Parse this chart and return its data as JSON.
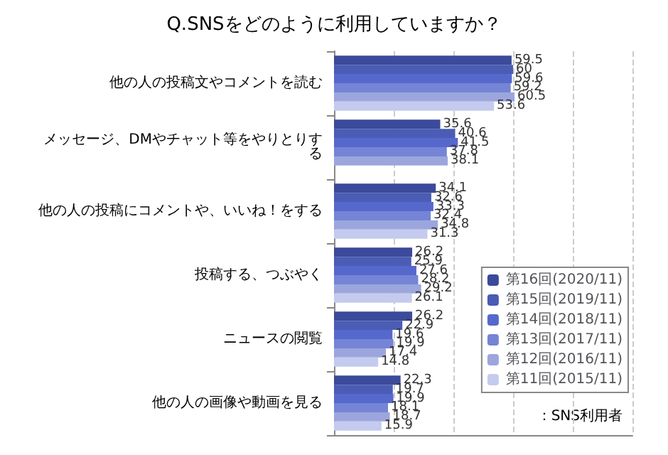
{
  "chart_data": {
    "type": "bar",
    "orientation": "horizontal",
    "title": "Q.SNSをどのように利用していますか？",
    "categories": [
      "他の人の投稿文やコメントを読む",
      "メッセージ、DMやチャット等をやりとりする",
      "他の人の投稿にコメントや、いいね！をする",
      "投稿する、つぶやく",
      "ニュースの閲覧",
      "他の人の画像や動画を見る"
    ],
    "series": [
      {
        "name": "第16回(2020/11)",
        "color": "#3b4a9a",
        "values": [
          59.5,
          35.6,
          34.1,
          26.2,
          26.2,
          22.3
        ]
      },
      {
        "name": "第15回(2019/11)",
        "color": "#4a5cb4",
        "values": [
          60.0,
          40.6,
          32.6,
          25.9,
          22.9,
          19.7
        ]
      },
      {
        "name": "第14回(2018/11)",
        "color": "#5668cc",
        "values": [
          59.6,
          41.5,
          33.3,
          27.6,
          19.6,
          19.9
        ]
      },
      {
        "name": "第13回(2017/11)",
        "color": "#7584d4",
        "values": [
          59.2,
          37.8,
          32.4,
          28.2,
          19.9,
          18.1
        ]
      },
      {
        "name": "第12回(2016/11)",
        "color": "#9ca6dd",
        "values": [
          60.5,
          38.1,
          34.8,
          29.2,
          17.4,
          18.7
        ]
      },
      {
        "name": "第11回(2015/11)",
        "color": "#c5cbee",
        "values": [
          53.6,
          null,
          31.3,
          26.1,
          14.8,
          15.9
        ]
      }
    ],
    "xlim": [
      0,
      100
    ],
    "xticks": [
      0,
      20,
      40,
      60,
      80,
      100
    ],
    "tick_labels": "y",
    "grid": "x",
    "data_labels": true,
    "legend": "bottom right",
    "annotations": [
      "：SNS利用者"
    ]
  }
}
